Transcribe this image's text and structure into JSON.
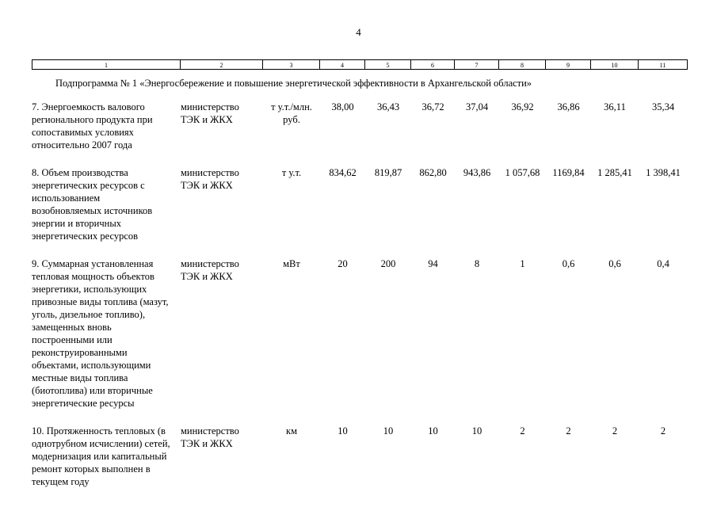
{
  "page": {
    "number": "4"
  },
  "table": {
    "column_numbers": [
      "1",
      "2",
      "3",
      "4",
      "5",
      "6",
      "7",
      "8",
      "9",
      "10",
      "11"
    ],
    "subprogram_title": "Подпрограмма № 1 «Энергосбережение и повышение энергетической эффективности в Архангельской области»",
    "rows": [
      {
        "name": "7. Энергоемкость валового регионального продукта при сопоставимых условиях относительно 2007 года",
        "executor": "министерство ТЭК и ЖКХ",
        "unit": "т у.т./млн. руб.",
        "values": [
          "38,00",
          "36,43",
          "36,72",
          "37,04",
          "36,92",
          "36,86",
          "36,11",
          "35,34"
        ]
      },
      {
        "name": "8. Объем производства энергетических ресурсов с использованием возобновляемых источников энергии и вторичных энергетических ресурсов",
        "executor": "министерство ТЭК и ЖКХ",
        "unit": "т у.т.",
        "values": [
          "834,62",
          "819,87",
          "862,80",
          "943,86",
          "1 057,68",
          "1169,84",
          "1 285,41",
          "1 398,41"
        ]
      },
      {
        "name": "9. Суммарная установленная тепловая мощность объектов энергетики, использующих привозные виды топлива (мазут, уголь, дизельное топливо), замещенных вновь построенными или реконструированными объектами, использующими местные виды топлива (биотоплива) или вторичные энергетические ресурсы",
        "executor": "министерство ТЭК и ЖКХ",
        "unit": "мВт",
        "values": [
          "20",
          "200",
          "94",
          "8",
          "1",
          "0,6",
          "0,6",
          "0,4"
        ]
      },
      {
        "name": "10. Протяженность тепловых (в однотрубном исчислении) сетей, модернизация или капитальный ремонт которых выполнен в текущем году",
        "executor": "министерство ТЭК и ЖКХ",
        "unit": "км",
        "values": [
          "10",
          "10",
          "10",
          "10",
          "2",
          "2",
          "2",
          "2"
        ]
      }
    ]
  }
}
